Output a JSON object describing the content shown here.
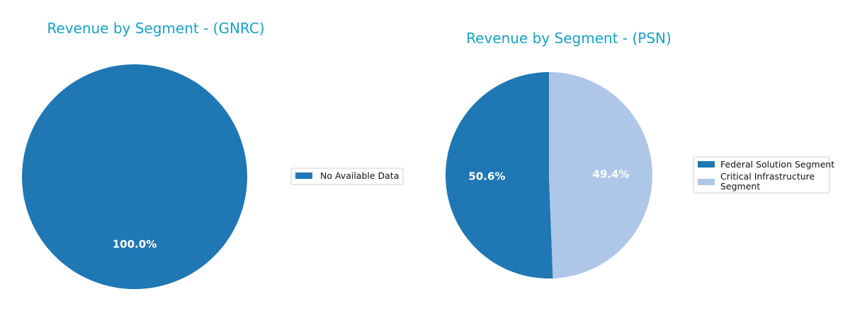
{
  "chart_data": [
    {
      "type": "pie",
      "title": "Revenue by Segment - (GNRC)",
      "slices": [
        {
          "label": "No Available Data",
          "value": 100.0,
          "display": "100.0%",
          "color": "#1f77b4"
        }
      ],
      "legend_position": "right"
    },
    {
      "type": "pie",
      "title": "Revenue by Segment - (PSN)",
      "slices": [
        {
          "label": "Federal Solution Segment",
          "value": 50.6,
          "display": "50.6%",
          "color": "#1f77b4"
        },
        {
          "label": "Critical Infrastructure Segment",
          "label_lines": [
            "Critical Infrastructure",
            "Segment"
          ],
          "value": 49.4,
          "display": "49.4%",
          "color": "#aec7e8"
        }
      ],
      "legend_position": "right"
    }
  ]
}
